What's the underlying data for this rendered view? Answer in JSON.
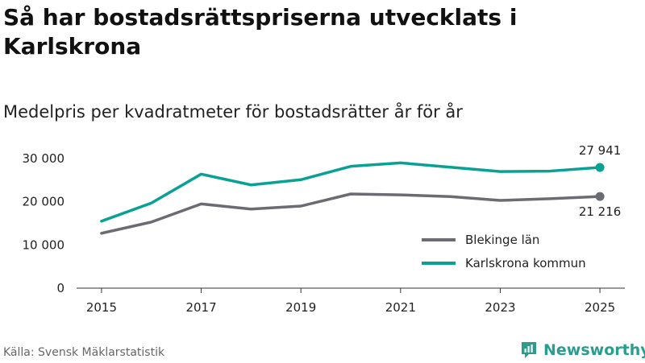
{
  "title": "Så har bostadsrättspriserna utvecklats i Karlskrona",
  "subtitle": "Medelpris per kvadratmeter för bostadsrätter år för år",
  "source": "Källa: Svensk Mäklarstatistik",
  "brand": {
    "name": "Newsworthy",
    "icon": "newsworthy-logo-icon",
    "color": "#2a9d8f"
  },
  "chart_data": {
    "type": "line",
    "title": "Så har bostadsrättspriserna utvecklats i Karlskrona",
    "subtitle": "Medelpris per kvadratmeter för bostadsrätter år för år",
    "xlabel": "",
    "ylabel": "",
    "x": [
      2015,
      2016,
      2017,
      2018,
      2019,
      2020,
      2021,
      2022,
      2023,
      2024,
      2025
    ],
    "xticks": [
      2015,
      2017,
      2019,
      2021,
      2023,
      2025
    ],
    "yticks": [
      0,
      10000,
      20000,
      30000
    ],
    "ytick_labels": [
      "0",
      "10 000",
      "20 000",
      "30 000"
    ],
    "ylim": [
      0,
      30000
    ],
    "grid": false,
    "legend_position": "bottom-right",
    "series": [
      {
        "name": "Blekinge län",
        "color": "#6b6b73",
        "values": [
          12700,
          15300,
          19500,
          18300,
          19000,
          21800,
          21600,
          21200,
          20300,
          20700,
          21216
        ],
        "end_label": "21 216"
      },
      {
        "name": "Karlskrona kommun",
        "color": "#0aa195",
        "values": [
          15500,
          19700,
          26400,
          23900,
          25100,
          28200,
          29000,
          28000,
          27000,
          27100,
          27941
        ],
        "end_label": "27 941"
      }
    ]
  }
}
